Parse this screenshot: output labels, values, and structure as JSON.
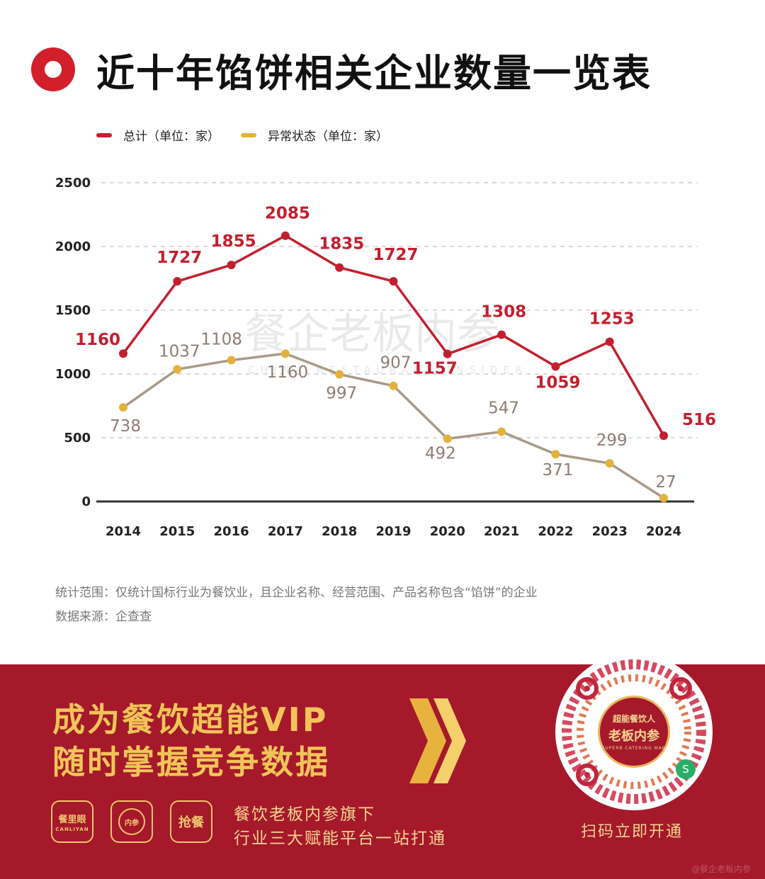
{
  "title": "近十年馅饼相关企业数量一览表",
  "legend": {
    "total": "总计（单位：家）",
    "abnormal": "异常状态（单位：家）"
  },
  "colors": {
    "accent": "#d31f2b",
    "total": "#c2202f",
    "abnormal": "#a89a86",
    "abnormal_dot": "#e3b23c",
    "banner": "#a5192b",
    "banner_text": "#f2c458"
  },
  "watermark": {
    "cn": "餐企老板内参",
    "en": "CHINA RESTAURANT INSIDER"
  },
  "chart_data": {
    "type": "line",
    "categories": [
      "2014",
      "2015",
      "2016",
      "2017",
      "2018",
      "2019",
      "2020",
      "2021",
      "2022",
      "2023",
      "2024"
    ],
    "series": [
      {
        "name": "总计（单位：家）",
        "values": [
          1160,
          1727,
          1855,
          2085,
          1835,
          1727,
          1157,
          1308,
          1059,
          1253,
          516
        ]
      },
      {
        "name": "异常状态（单位：家）",
        "values": [
          738,
          1037,
          1108,
          1160,
          997,
          907,
          492,
          547,
          371,
          299,
          27
        ]
      }
    ],
    "yticks": [
      "0",
      "500",
      "1000",
      "1500",
      "2000",
      "2500"
    ],
    "ylim": [
      0,
      2500
    ],
    "grid": "dashed horizontal",
    "legend": "top-left"
  },
  "notes": {
    "scope": "统计范围：仅统计国标行业为餐饮业，且企业名称、经营范围、产品名称包含“馅饼”的企业",
    "source": "数据来源：企查查"
  },
  "banner": {
    "headline1": "成为餐饮超能VIP",
    "headline2": "随时掌握竞争数据",
    "sub1": "餐饮老板内参旗下",
    "sub2": "行业三大赋能平台一站打通",
    "logo1": "餐里眼",
    "logo1_sub": "CANLIYAN",
    "logo2": "内参",
    "logo3": "抢餐",
    "qr_seal_top": "超能餐饮人",
    "qr_seal_mid": "老板内参",
    "qr_seal_bot": "SUPERB CATERING MAN",
    "qr_badge": "S",
    "scan": "扫码立即开通",
    "corner": "@餐企老板内参"
  }
}
